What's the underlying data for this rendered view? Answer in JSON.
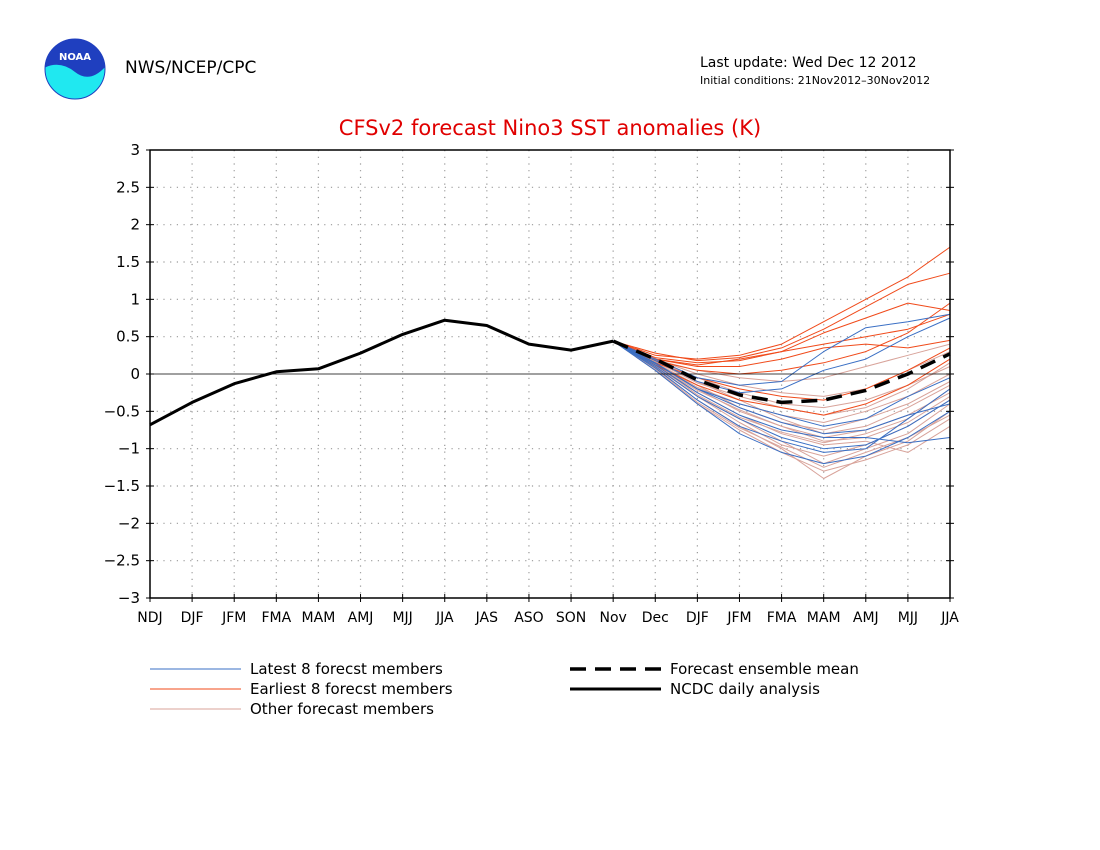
{
  "header": {
    "logo_text": "NOAA",
    "agency": "NWS/NCEP/CPC",
    "last_update": "Last update: Wed Dec 12 2012",
    "initial_conditions": "Initial conditions: 21Nov2012–30Nov2012"
  },
  "colors": {
    "latest": "#3a6fc4",
    "earliest": "#f04a1a",
    "other": "#d8a39a",
    "title": "#e00000",
    "logo_blue": "#1f3fbf",
    "logo_cyan": "#20e8f0"
  },
  "chart_data": {
    "type": "line",
    "title": "CFSv2 forecast Nino3 SST anomalies (K)",
    "categories": [
      "NDJ",
      "DJF",
      "JFM",
      "FMA",
      "MAM",
      "AMJ",
      "MJJ",
      "JJA",
      "JAS",
      "ASO",
      "SON",
      "Nov",
      "Dec",
      "DJF",
      "JFM",
      "FMA",
      "MAM",
      "AMJ",
      "MJJ",
      "JJA"
    ],
    "ylim": [
      -3,
      3
    ],
    "yticks": [
      "3",
      "2.5",
      "2",
      "1.5",
      "1",
      "0.5",
      "0",
      "−0.5",
      "−1",
      "−1.5",
      "−2",
      "−2.5",
      "−3"
    ],
    "grid": true,
    "legend_position": "bottom",
    "legend": {
      "latest": "Latest 8 forecst members",
      "earliest": "Earliest 8 forecst members",
      "other": "Other forecast members",
      "mean": "Forecast ensemble mean",
      "obs": "NCDC daily analysis"
    },
    "observed": [
      -0.68,
      -0.38,
      -0.13,
      0.03,
      0.07,
      0.28,
      0.53,
      0.72,
      0.65,
      0.4,
      0.32,
      0.44
    ],
    "ensemble_mean": [
      0.44,
      0.2,
      -0.08,
      -0.28,
      -0.38,
      -0.35,
      -0.22,
      0.0,
      0.27
    ],
    "latest_members": [
      [
        0.44,
        0.15,
        -0.2,
        -0.45,
        -0.65,
        -0.8,
        -0.75,
        -0.55,
        -0.4
      ],
      [
        0.44,
        0.1,
        -0.3,
        -0.6,
        -0.85,
        -1.0,
        -0.95,
        -0.7,
        -0.35
      ],
      [
        0.44,
        0.05,
        -0.4,
        -0.8,
        -1.05,
        -1.2,
        -1.1,
        -0.85,
        -0.5
      ],
      [
        0.44,
        0.2,
        -0.05,
        -0.15,
        -0.1,
        0.3,
        0.62,
        0.7,
        0.8
      ],
      [
        0.44,
        0.12,
        -0.25,
        -0.55,
        -0.75,
        -0.85,
        -0.85,
        -0.92,
        -0.85
      ],
      [
        0.44,
        0.18,
        -0.1,
        -0.25,
        -0.2,
        0.05,
        0.2,
        0.5,
        0.75
      ],
      [
        0.44,
        0.08,
        -0.35,
        -0.7,
        -0.9,
        -1.05,
        -1.0,
        -0.6,
        -0.2
      ],
      [
        0.44,
        0.14,
        -0.2,
        -0.4,
        -0.55,
        -0.7,
        -0.6,
        -0.3,
        -0.05
      ]
    ],
    "earliest_members": [
      [
        0.44,
        0.25,
        0.2,
        0.25,
        0.4,
        0.7,
        1.0,
        1.3,
        1.7
      ],
      [
        0.44,
        0.28,
        0.18,
        0.22,
        0.35,
        0.6,
        0.9,
        1.2,
        1.35
      ],
      [
        0.44,
        0.22,
        0.15,
        0.18,
        0.3,
        0.55,
        0.75,
        0.95,
        0.85
      ],
      [
        0.44,
        0.2,
        0.1,
        0.1,
        0.2,
        0.35,
        0.4,
        0.35,
        0.45
      ],
      [
        0.44,
        0.18,
        0.05,
        0.0,
        0.05,
        0.15,
        0.3,
        0.55,
        0.95
      ],
      [
        0.44,
        0.15,
        -0.05,
        -0.2,
        -0.3,
        -0.35,
        -0.2,
        0.05,
        0.35
      ],
      [
        0.44,
        0.12,
        -0.15,
        -0.35,
        -0.45,
        -0.55,
        -0.4,
        -0.15,
        0.2
      ],
      [
        0.44,
        0.2,
        0.12,
        0.2,
        0.3,
        0.4,
        0.5,
        0.6,
        0.8
      ]
    ],
    "other_members": [
      [
        0.44,
        0.1,
        -0.3,
        -0.6,
        -0.9,
        -1.2,
        -1.0,
        -0.8,
        -0.4
      ],
      [
        0.44,
        0.05,
        -0.4,
        -0.75,
        -1.05,
        -1.3,
        -1.15,
        -0.95,
        -0.6
      ],
      [
        0.44,
        0.08,
        -0.35,
        -0.7,
        -1.0,
        -1.4,
        -1.1,
        -0.9,
        -0.5
      ],
      [
        0.44,
        0.15,
        -0.15,
        -0.45,
        -0.65,
        -0.75,
        -0.6,
        -0.4,
        -0.1
      ],
      [
        0.44,
        0.12,
        -0.2,
        -0.5,
        -0.7,
        -0.85,
        -0.75,
        -0.55,
        -0.25
      ],
      [
        0.44,
        0.18,
        -0.05,
        -0.25,
        -0.4,
        -0.45,
        -0.35,
        -0.15,
        0.1
      ],
      [
        0.44,
        0.1,
        -0.25,
        -0.55,
        -0.8,
        -0.95,
        -0.9,
        -1.05,
        -0.7
      ],
      [
        0.44,
        0.2,
        0.0,
        -0.15,
        -0.25,
        -0.3,
        -0.2,
        0.05,
        0.3
      ],
      [
        0.44,
        0.14,
        -0.18,
        -0.4,
        -0.55,
        -0.65,
        -0.5,
        -0.3,
        0.0
      ],
      [
        0.44,
        0.16,
        -0.1,
        -0.35,
        -0.6,
        -0.8,
        -0.7,
        -0.45,
        -0.15
      ],
      [
        0.44,
        0.09,
        -0.3,
        -0.65,
        -0.95,
        -1.1,
        -0.95,
        -0.7,
        -0.35
      ],
      [
        0.44,
        0.19,
        0.05,
        -0.05,
        -0.1,
        -0.05,
        0.1,
        0.25,
        0.4
      ],
      [
        0.44,
        0.11,
        -0.22,
        -0.48,
        -0.7,
        -0.9,
        -0.85,
        -0.65,
        -0.3
      ],
      [
        0.44,
        0.13,
        -0.28,
        -0.58,
        -0.78,
        -0.92,
        -0.8,
        -0.6,
        -0.2
      ],
      [
        0.44,
        0.17,
        -0.12,
        -0.3,
        -0.45,
        -0.55,
        -0.45,
        -0.2,
        0.15
      ],
      [
        0.44,
        0.07,
        -0.38,
        -0.72,
        -0.98,
        -1.25,
        -1.05,
        -0.85,
        -0.55
      ]
    ]
  }
}
